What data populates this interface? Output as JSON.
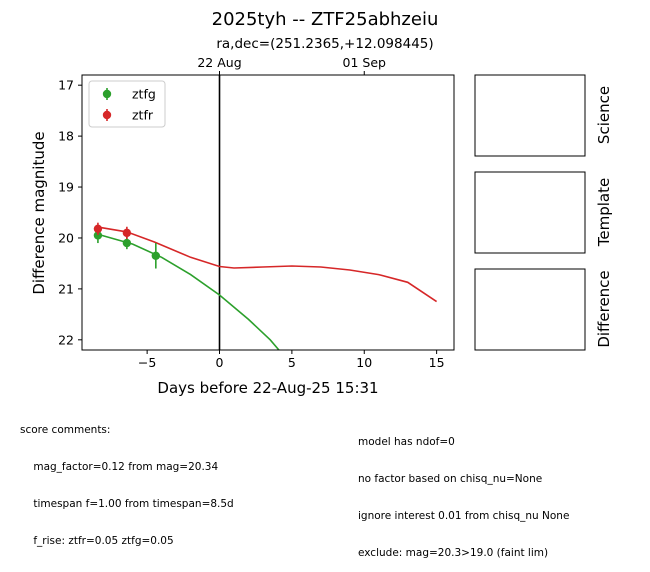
{
  "chart_data": {
    "type": "scatter",
    "title": "2025tyh -- ZTF25abhzeiu",
    "subtitle": "ra,dec=(251.2365,+12.098445)",
    "xlabel": "Days before 22-Aug-25 15:31",
    "ylabel": "Difference magnitude",
    "xlim": [
      -9.5,
      16.2
    ],
    "ylim": [
      22.2,
      16.8
    ],
    "inverted_y": true,
    "x_ticks": [
      -5,
      0,
      5,
      10,
      15
    ],
    "y_ticks": [
      17,
      18,
      19,
      20,
      21,
      22
    ],
    "top_axis_ticks": [
      {
        "x": 0,
        "label": "22 Aug"
      },
      {
        "x": 10,
        "label": "01 Sep"
      }
    ],
    "vline_x": 0,
    "legend_position": "upper left",
    "series": [
      {
        "name": "ztfg",
        "color": "#2ca02c",
        "points": [
          {
            "x": -8.4,
            "y": 19.95,
            "err": 0.15
          },
          {
            "x": -6.4,
            "y": 20.1,
            "err": 0.12
          },
          {
            "x": -4.4,
            "y": 20.35,
            "err": 0.25
          }
        ],
        "model_curve": [
          {
            "x": -8.5,
            "y": 19.92
          },
          {
            "x": -6,
            "y": 20.12
          },
          {
            "x": -4,
            "y": 20.38
          },
          {
            "x": -2,
            "y": 20.72
          },
          {
            "x": 0,
            "y": 21.12
          },
          {
            "x": 2,
            "y": 21.6
          },
          {
            "x": 3.5,
            "y": 22.0
          },
          {
            "x": 4.1,
            "y": 22.2
          }
        ]
      },
      {
        "name": "ztfr",
        "color": "#d62728",
        "points": [
          {
            "x": -8.4,
            "y": 19.82,
            "err": 0.12
          },
          {
            "x": -6.4,
            "y": 19.9,
            "err": 0.12
          }
        ],
        "model_curve": [
          {
            "x": -8.5,
            "y": 19.78
          },
          {
            "x": -6.4,
            "y": 19.88
          },
          {
            "x": -4.5,
            "y": 20.08
          },
          {
            "x": -2,
            "y": 20.38
          },
          {
            "x": 0,
            "y": 20.56
          },
          {
            "x": 1,
            "y": 20.59
          },
          {
            "x": 3,
            "y": 20.57
          },
          {
            "x": 5,
            "y": 20.55
          },
          {
            "x": 7,
            "y": 20.57
          },
          {
            "x": 9,
            "y": 20.63
          },
          {
            "x": 11,
            "y": 20.72
          },
          {
            "x": 13,
            "y": 20.87
          },
          {
            "x": 15,
            "y": 21.25
          }
        ]
      }
    ],
    "cutout_panels": [
      "Science",
      "Template",
      "Difference"
    ]
  },
  "comments": {
    "left": [
      "score comments:",
      "    mag_factor=0.12 from mag=20.34",
      "    timespan f=1.00 from timespan=8.5d",
      "    f_rise: ztfr=0.05 ztfg=0.05"
    ],
    "right": [
      "model has ndof=0",
      "no factor based on chisq_nu=None",
      "ignore interest 0.01 from chisq_nu None",
      "exclude: mag=20.3>19.0 (faint lim)"
    ]
  }
}
